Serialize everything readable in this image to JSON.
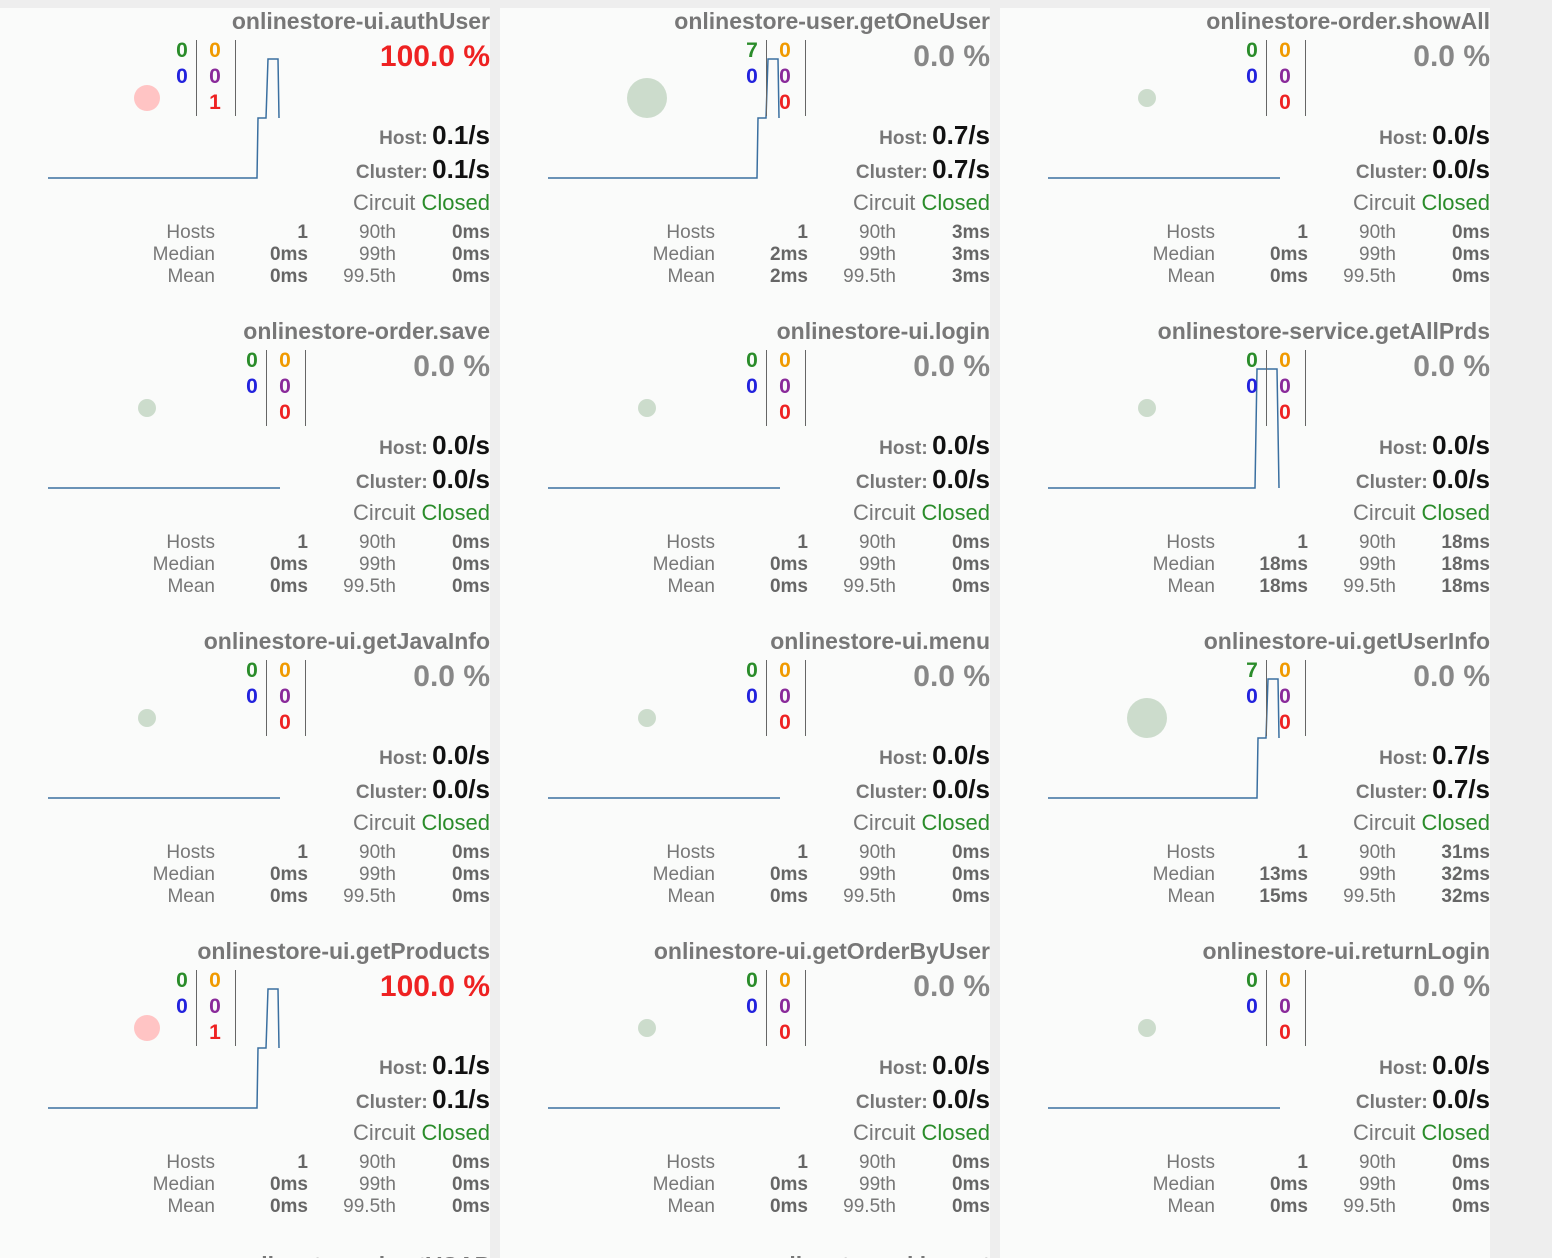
{
  "cards": [
    {
      "title": "onlinestore-ui.authUser",
      "success": "0",
      "short": "0",
      "timeout": "0",
      "rejected": "0",
      "failure": "1",
      "rate": "100.0 %",
      "error": true,
      "host": "0.1/s",
      "cluster": "0.1/s",
      "circuit_label": "Circuit",
      "circuit_state": "Closed",
      "hosts": "1",
      "median": "0ms",
      "mean": "0ms",
      "p90": "0ms",
      "p99": "0ms",
      "p995": "0ms",
      "bubble": "small-red",
      "spark": "step"
    },
    {
      "title": "onlinestore-user.getOneUser",
      "success": "7",
      "short": "0",
      "timeout": "0",
      "rejected": "0",
      "failure": "0",
      "rate": "0.0 %",
      "error": false,
      "host": "0.7/s",
      "cluster": "0.7/s",
      "circuit_label": "Circuit",
      "circuit_state": "Closed",
      "hosts": "1",
      "median": "2ms",
      "mean": "2ms",
      "p90": "3ms",
      "p99": "3ms",
      "p995": "3ms",
      "bubble": "large-green",
      "spark": "step"
    },
    {
      "title": "onlinestore-order.showAll",
      "success": "0",
      "short": "0",
      "timeout": "0",
      "rejected": "0",
      "failure": "0",
      "rate": "0.0 %",
      "error": false,
      "host": "0.0/s",
      "cluster": "0.0/s",
      "circuit_label": "Circuit",
      "circuit_state": "Closed",
      "hosts": "1",
      "median": "0ms",
      "mean": "0ms",
      "p90": "0ms",
      "p99": "0ms",
      "p995": "0ms",
      "bubble": "small-green",
      "spark": "flat"
    },
    {
      "title": "onlinestore-order.save",
      "success": "0",
      "short": "0",
      "timeout": "0",
      "rejected": "0",
      "failure": "0",
      "rate": "0.0 %",
      "error": false,
      "host": "0.0/s",
      "cluster": "0.0/s",
      "circuit_label": "Circuit",
      "circuit_state": "Closed",
      "hosts": "1",
      "median": "0ms",
      "mean": "0ms",
      "p90": "0ms",
      "p99": "0ms",
      "p995": "0ms",
      "bubble": "small-green",
      "spark": "flat"
    },
    {
      "title": "onlinestore-ui.login",
      "success": "0",
      "short": "0",
      "timeout": "0",
      "rejected": "0",
      "failure": "0",
      "rate": "0.0 %",
      "error": false,
      "host": "0.0/s",
      "cluster": "0.0/s",
      "circuit_label": "Circuit",
      "circuit_state": "Closed",
      "hosts": "1",
      "median": "0ms",
      "mean": "0ms",
      "p90": "0ms",
      "p99": "0ms",
      "p995": "0ms",
      "bubble": "small-green",
      "spark": "flat"
    },
    {
      "title": "onlinestore-service.getAllPrds",
      "success": "0",
      "short": "0",
      "timeout": "0",
      "rejected": "0",
      "failure": "0",
      "rate": "0.0 %",
      "error": false,
      "host": "0.0/s",
      "cluster": "0.0/s",
      "circuit_label": "Circuit",
      "circuit_state": "Closed",
      "hosts": "1",
      "median": "18ms",
      "mean": "18ms",
      "p90": "18ms",
      "p99": "18ms",
      "p995": "18ms",
      "bubble": "small-green",
      "spark": "pulse"
    },
    {
      "title": "onlinestore-ui.getJavaInfo",
      "success": "0",
      "short": "0",
      "timeout": "0",
      "rejected": "0",
      "failure": "0",
      "rate": "0.0 %",
      "error": false,
      "host": "0.0/s",
      "cluster": "0.0/s",
      "circuit_label": "Circuit",
      "circuit_state": "Closed",
      "hosts": "1",
      "median": "0ms",
      "mean": "0ms",
      "p90": "0ms",
      "p99": "0ms",
      "p995": "0ms",
      "bubble": "small-green",
      "spark": "flat"
    },
    {
      "title": "onlinestore-ui.menu",
      "success": "0",
      "short": "0",
      "timeout": "0",
      "rejected": "0",
      "failure": "0",
      "rate": "0.0 %",
      "error": false,
      "host": "0.0/s",
      "cluster": "0.0/s",
      "circuit_label": "Circuit",
      "circuit_state": "Closed",
      "hosts": "1",
      "median": "0ms",
      "mean": "0ms",
      "p90": "0ms",
      "p99": "0ms",
      "p995": "0ms",
      "bubble": "small-green",
      "spark": "flat"
    },
    {
      "title": "onlinestore-ui.getUserInfo",
      "success": "7",
      "short": "0",
      "timeout": "0",
      "rejected": "0",
      "failure": "0",
      "rate": "0.0 %",
      "error": false,
      "host": "0.7/s",
      "cluster": "0.7/s",
      "circuit_label": "Circuit",
      "circuit_state": "Closed",
      "hosts": "1",
      "median": "13ms",
      "mean": "15ms",
      "p90": "31ms",
      "p99": "32ms",
      "p995": "32ms",
      "bubble": "large-green",
      "spark": "step"
    },
    {
      "title": "onlinestore-ui.getProducts",
      "success": "0",
      "short": "0",
      "timeout": "0",
      "rejected": "0",
      "failure": "1",
      "rate": "100.0 %",
      "error": true,
      "host": "0.1/s",
      "cluster": "0.1/s",
      "circuit_label": "Circuit",
      "circuit_state": "Closed",
      "hosts": "1",
      "median": "0ms",
      "mean": "0ms",
      "p90": "0ms",
      "p99": "0ms",
      "p995": "0ms",
      "bubble": "small-red",
      "spark": "step"
    },
    {
      "title": "onlinestore-ui.getOrderByUser",
      "success": "0",
      "short": "0",
      "timeout": "0",
      "rejected": "0",
      "failure": "0",
      "rate": "0.0 %",
      "error": false,
      "host": "0.0/s",
      "cluster": "0.0/s",
      "circuit_label": "Circuit",
      "circuit_state": "Closed",
      "hosts": "1",
      "median": "0ms",
      "mean": "0ms",
      "p90": "0ms",
      "p99": "0ms",
      "p995": "0ms",
      "bubble": "small-green",
      "spark": "flat"
    },
    {
      "title": "onlinestore-ui.returnLogin",
      "success": "0",
      "short": "0",
      "timeout": "0",
      "rejected": "0",
      "failure": "0",
      "rate": "0.0 %",
      "error": false,
      "host": "0.0/s",
      "cluster": "0.0/s",
      "circuit_label": "Circuit",
      "circuit_state": "Closed",
      "hosts": "1",
      "median": "0ms",
      "mean": "0ms",
      "p90": "0ms",
      "p99": "0ms",
      "p995": "0ms",
      "bubble": "small-green",
      "spark": "flat"
    }
  ],
  "labels": {
    "host": "Host:",
    "cluster": "Cluster:",
    "hosts": "Hosts",
    "median": "Median",
    "mean": "Mean",
    "p90": "90th",
    "p99": "99th",
    "p995": "99.5th"
  },
  "partial_titles": [
    "onlinestore-ui.getVCAP",
    "onlinestore-ui.logout"
  ],
  "colors": {
    "success": "#2a8c2a",
    "short": "#2222dd",
    "timeout": "#f09a00",
    "rejected": "#8a2a9a",
    "failure": "#ee2222",
    "spark": "#3a6fa0"
  }
}
